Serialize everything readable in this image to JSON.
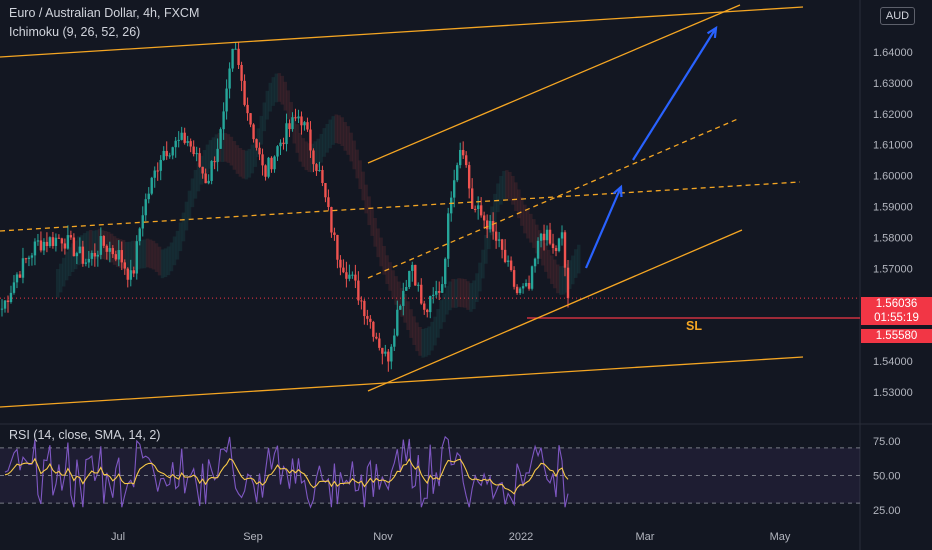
{
  "header": {
    "symbol_line": "Euro / Australian Dollar, 4h, FXCM",
    "indicator_line": "Ichimoku (9, 26, 52, 26)",
    "currency_badge": "AUD"
  },
  "price_axis": {
    "ticks": [
      "1.64000",
      "1.63000",
      "1.62000",
      "1.61000",
      "1.60000",
      "1.59000",
      "1.58000",
      "1.57000",
      "1.54000",
      "1.53000"
    ],
    "last_price": "1.56036",
    "countdown": "01:55:19",
    "sl_price": "1.55580",
    "colors": {
      "last_bg": "#f23645",
      "sl_bg": "#f23645"
    }
  },
  "drawings": {
    "sl_label": "SL",
    "trend_color": "#f5a623",
    "arrow_color": "#2962ff"
  },
  "rsi": {
    "label": "RSI (14, close, SMA, 14, 2)",
    "ticks": [
      "75.00",
      "50.00",
      "25.00"
    ],
    "line_color": "#7e57c2",
    "ma_color": "#f7c948"
  },
  "time_axis": {
    "labels": [
      "Jul",
      "Sep",
      "Nov",
      "2022",
      "Mar",
      "May"
    ]
  },
  "chart_data": {
    "type": "candlestick",
    "title": "Euro / Australian Dollar, 4h, FXCM",
    "ylim": [
      1.525,
      1.655
    ],
    "last": 1.56036,
    "stop_loss": 1.5558,
    "anchor_closes": [
      {
        "x": 0,
        "y": 1.557
      },
      {
        "x": 15,
        "y": 1.568
      },
      {
        "x": 35,
        "y": 1.578
      },
      {
        "x": 60,
        "y": 1.58
      },
      {
        "x": 85,
        "y": 1.572
      },
      {
        "x": 100,
        "y": 1.578
      },
      {
        "x": 118,
        "y": 1.574
      },
      {
        "x": 130,
        "y": 1.566
      },
      {
        "x": 140,
        "y": 1.588
      },
      {
        "x": 160,
        "y": 1.608
      },
      {
        "x": 185,
        "y": 1.612
      },
      {
        "x": 205,
        "y": 1.598
      },
      {
        "x": 220,
        "y": 1.615
      },
      {
        "x": 232,
        "y": 1.642
      },
      {
        "x": 245,
        "y": 1.622
      },
      {
        "x": 262,
        "y": 1.6
      },
      {
        "x": 280,
        "y": 1.612
      },
      {
        "x": 298,
        "y": 1.62
      },
      {
        "x": 318,
        "y": 1.6
      },
      {
        "x": 335,
        "y": 1.575
      },
      {
        "x": 352,
        "y": 1.565
      },
      {
        "x": 368,
        "y": 1.553
      },
      {
        "x": 385,
        "y": 1.54
      },
      {
        "x": 398,
        "y": 1.56
      },
      {
        "x": 410,
        "y": 1.572
      },
      {
        "x": 422,
        "y": 1.555
      },
      {
        "x": 440,
        "y": 1.565
      },
      {
        "x": 450,
        "y": 1.598
      },
      {
        "x": 460,
        "y": 1.612
      },
      {
        "x": 470,
        "y": 1.59
      },
      {
        "x": 485,
        "y": 1.585
      },
      {
        "x": 500,
        "y": 1.575
      },
      {
        "x": 515,
        "y": 1.562
      },
      {
        "x": 527,
        "y": 1.563
      },
      {
        "x": 540,
        "y": 1.583
      },
      {
        "x": 552,
        "y": 1.575
      },
      {
        "x": 560,
        "y": 1.58
      },
      {
        "x": 566,
        "y": 1.5604
      }
    ]
  }
}
